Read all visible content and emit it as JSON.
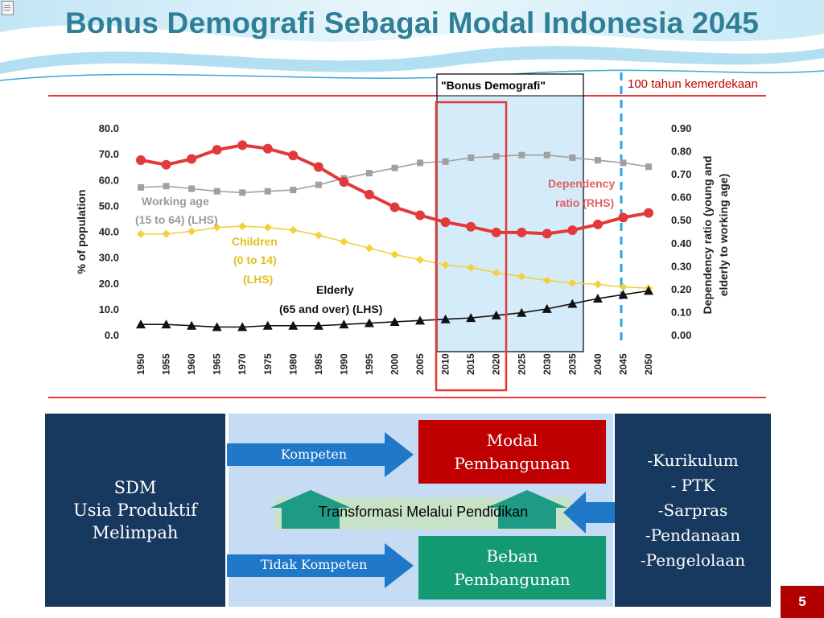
{
  "slide": {
    "title": "Bonus Demografi Sebagai Modal Indonesia 2045",
    "page_number": "5",
    "corner_icon": "document-icon"
  },
  "chart_data": {
    "type": "line",
    "x": [
      1950,
      1955,
      1960,
      1965,
      1970,
      1975,
      1980,
      1985,
      1990,
      1995,
      2000,
      2005,
      2010,
      2015,
      2020,
      2025,
      2030,
      2035,
      2040,
      2045,
      2050
    ],
    "x_tick_labels": [
      "1950",
      "1955",
      "1960",
      "1965",
      "1970",
      "1975",
      "1980",
      "1985",
      "1990",
      "1995",
      "2000",
      "2005",
      "2010",
      "2015",
      "2020",
      "2025",
      "2030",
      "2035",
      "2040",
      "2045",
      "2050"
    ],
    "left_axis": {
      "label": "% of population",
      "ylim": [
        0,
        80
      ],
      "ticks": [
        "80.0",
        "70.0",
        "60.0",
        "50.0",
        "40.0",
        "30.0",
        "20.0",
        "10.0",
        "0.0"
      ]
    },
    "right_axis": {
      "label_line1": "Dependency ratio (young and",
      "label_line2": "elderly to working age)",
      "ylim": [
        0,
        0.9
      ],
      "ticks": [
        "0.90",
        "0.80",
        "0.70",
        "0.60",
        "0.50",
        "0.40",
        "0.30",
        "0.20",
        "0.10",
        "0.00"
      ]
    },
    "series": [
      {
        "name": "Working age (15 to 64) (LHS)",
        "axis": "left",
        "color": "#a0a0a0",
        "marker": "square",
        "values": [
          57,
          57.5,
          56.5,
          55.5,
          55,
          55.5,
          56,
          58,
          60.5,
          62.5,
          64.5,
          66.5,
          67,
          68.5,
          69,
          69.5,
          69.5,
          68.5,
          67.5,
          66.5,
          65
        ]
      },
      {
        "name": "Children (0 to 14) (LHS)",
        "axis": "left",
        "color": "#f2d13c",
        "marker": "diamond",
        "values": [
          39,
          39,
          40,
          41.5,
          42,
          41.5,
          40.5,
          38.5,
          36,
          33.5,
          31,
          29,
          27,
          26,
          24,
          22.5,
          21,
          20,
          19.5,
          18.5,
          18
        ]
      },
      {
        "name": "Elderly (65 and over) (LHS)",
        "axis": "left",
        "color": "#111111",
        "marker": "triangle",
        "values": [
          4,
          4,
          3.5,
          3,
          3,
          3.5,
          3.5,
          3.5,
          4,
          4.5,
          5,
          5.5,
          6,
          6.5,
          7.5,
          8.5,
          10,
          12,
          14,
          15.5,
          17
        ]
      },
      {
        "name": "Dependency ratio (RHS)",
        "axis": "right",
        "color": "#e23a3a",
        "marker": "circle",
        "values": [
          0.76,
          0.74,
          0.765,
          0.805,
          0.825,
          0.81,
          0.78,
          0.73,
          0.665,
          0.61,
          0.555,
          0.52,
          0.49,
          0.47,
          0.445,
          0.445,
          0.44,
          0.455,
          0.48,
          0.51,
          0.53
        ]
      }
    ],
    "annotations": {
      "working_line1": "Working age",
      "working_line2": "(15 to 64) (LHS)",
      "children_line1": "Children",
      "children_line2": "(0 to 14)",
      "children_line3": "(LHS)",
      "elderly_line1": "Elderly",
      "elderly_line2": "(65 and over) (LHS)",
      "dependency_line1": "Dependency",
      "dependency_line2": "ratio (RHS)",
      "bonus_label": "\"Bonus Demografi\"",
      "centennial_label": "100  tahun kemerdekaan"
    },
    "colors": {
      "bonus_shade": "#d4ecfa",
      "highlight_box": "#e53935",
      "centennial_line": "#2aa7e0",
      "border_red": "#e53935"
    }
  },
  "diagram": {
    "sdm_box": {
      "line1": "SDM",
      "line2": "Usia Produktif",
      "line3": "Melimpah"
    },
    "kompeten_arrow": {
      "label": "Kompeten"
    },
    "tidak_kompeten_arrow": {
      "label": "Tidak Kompeten"
    },
    "modal_box": {
      "line1": "Modal",
      "line2": "Pembangunan"
    },
    "beban_box": {
      "line1": "Beban",
      "line2": "Pembangunan"
    },
    "transform_bar": {
      "label": "Transformasi Melalui Pendidikan"
    },
    "right_box": {
      "items": [
        "-Kurikulum",
        "- PTK",
        "-Sarpras",
        "-Pendanaan",
        "-Pengelolaan"
      ]
    },
    "colors": {
      "navy": "#17395f",
      "arrow_blue": "#1f78c8",
      "red": "#c00000",
      "green": "#149a72",
      "panel": "#c6dcf4",
      "bar": "#c8e2c8",
      "teal": "#1e9b85"
    }
  }
}
